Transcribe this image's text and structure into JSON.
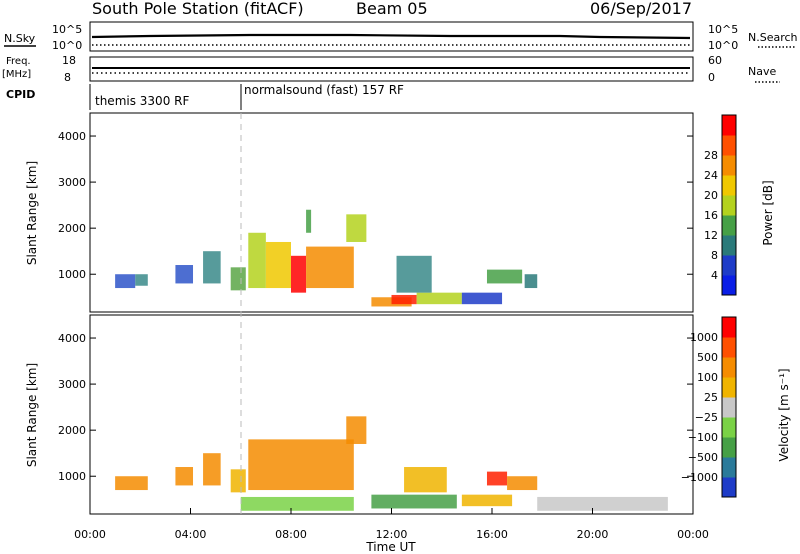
{
  "header": {
    "title": "South Pole Station (fitACF)",
    "beam": "Beam 05",
    "date": "06/Sep/2017"
  },
  "panels": {
    "nsky": {
      "left_label": "N.Sky",
      "right_label": "N.Search",
      "ticks_left": [
        "10^5",
        "10^0"
      ],
      "ticks_right": [
        "10^5",
        "10^0"
      ]
    },
    "freq": {
      "left_label_1": "Freq.",
      "left_label_2": "[MHz]",
      "right_label": "Nave",
      "ticks_left": [
        "18",
        "8"
      ],
      "ticks_right": [
        "60",
        "0"
      ]
    },
    "cpid": {
      "label": "CPID",
      "segments": [
        "themis 3300 RF",
        "normalsound (fast) 157 RF"
      ]
    }
  },
  "chart_data": [
    {
      "type": "heatmap",
      "name": "power",
      "ylabel": "Slant Range [km]",
      "y_ticks": [
        "1000",
        "2000",
        "3000",
        "4000"
      ],
      "x_range_hours": [
        0,
        24
      ],
      "y_range_km": [
        180,
        4500
      ],
      "colorbar": {
        "label": "Power [dB]",
        "ticks": [
          "4",
          "8",
          "12",
          "16",
          "20",
          "24",
          "28"
        ],
        "colors": [
          "#0a1ee6",
          "#1e3cc8",
          "#2a7a7a",
          "#46a046",
          "#b4d21e",
          "#f0c800",
          "#f58c00",
          "#ff5000",
          "#ff0000"
        ]
      },
      "patches": [
        {
          "t": [
            1.0,
            1.8
          ],
          "r": [
            700,
            1000
          ],
          "color": "#2e55c9"
        },
        {
          "t": [
            1.8,
            2.3
          ],
          "r": [
            750,
            1000
          ],
          "color": "#3a8a8a"
        },
        {
          "t": [
            3.4,
            4.1
          ],
          "r": [
            800,
            1200
          ],
          "color": "#2e55c9"
        },
        {
          "t": [
            4.5,
            5.2
          ],
          "r": [
            800,
            1500
          ],
          "color": "#3a8a8a"
        },
        {
          "t": [
            5.6,
            6.2
          ],
          "r": [
            650,
            1150
          ],
          "color": "#5aa646"
        },
        {
          "t": [
            6.3,
            7.0
          ],
          "r": [
            700,
            1900
          ],
          "color": "#b4d21e"
        },
        {
          "t": [
            7.0,
            8.0
          ],
          "r": [
            700,
            1700
          ],
          "color": "#f0c800"
        },
        {
          "t": [
            8.0,
            8.6
          ],
          "r": [
            600,
            1400
          ],
          "color": "#ff0000"
        },
        {
          "t": [
            8.6,
            10.5
          ],
          "r": [
            700,
            1600
          ],
          "color": "#f58c00"
        },
        {
          "t": [
            8.6,
            8.8
          ],
          "r": [
            1900,
            2400
          ],
          "color": "#46a046"
        },
        {
          "t": [
            10.2,
            11.0
          ],
          "r": [
            1700,
            2300
          ],
          "color": "#b4d21e"
        },
        {
          "t": [
            11.2,
            12.8
          ],
          "r": [
            300,
            500
          ],
          "color": "#f58c00"
        },
        {
          "t": [
            12.0,
            13.0
          ],
          "r": [
            350,
            550
          ],
          "color": "#ff2000"
        },
        {
          "t": [
            13.0,
            14.8
          ],
          "r": [
            350,
            600
          ],
          "color": "#b4d21e"
        },
        {
          "t": [
            14.8,
            16.4
          ],
          "r": [
            350,
            600
          ],
          "color": "#1e3cc8"
        },
        {
          "t": [
            15.8,
            17.2
          ],
          "r": [
            800,
            1100
          ],
          "color": "#46a046"
        },
        {
          "t": [
            17.3,
            17.8
          ],
          "r": [
            700,
            1000
          ],
          "color": "#2a7a7a"
        },
        {
          "t": [
            12.2,
            13.6
          ],
          "r": [
            600,
            1400
          ],
          "color": "#3a8a8a"
        }
      ]
    },
    {
      "type": "heatmap",
      "name": "velocity",
      "ylabel": "Slant Range [km]",
      "y_ticks": [
        "1000",
        "2000",
        "3000",
        "4000"
      ],
      "x_ticks": [
        "00:00",
        "04:00",
        "08:00",
        "12:00",
        "16:00",
        "20:00",
        "00:00"
      ],
      "xlabel": "Time UT",
      "x_range_hours": [
        0,
        24
      ],
      "y_range_km": [
        180,
        4500
      ],
      "colorbar": {
        "label": "Velocity [m s⁻¹]",
        "ticks": [
          "1000",
          "500",
          "100",
          "25",
          "−25",
          "−100",
          "−500",
          "−1000"
        ],
        "colors": [
          "#1e3cc8",
          "#2a7a9a",
          "#46a046",
          "#7ad246",
          "#c8c8c8",
          "#f0b400",
          "#f58c00",
          "#ff5000",
          "#ff0000"
        ]
      },
      "patches": [
        {
          "t": [
            1.0,
            2.3
          ],
          "r": [
            700,
            1000
          ],
          "color": "#f58c00"
        },
        {
          "t": [
            3.4,
            4.1
          ],
          "r": [
            800,
            1200
          ],
          "color": "#f58c00"
        },
        {
          "t": [
            4.5,
            5.2
          ],
          "r": [
            800,
            1500
          ],
          "color": "#f58c00"
        },
        {
          "t": [
            5.6,
            6.2
          ],
          "r": [
            650,
            1150
          ],
          "color": "#f0b400"
        },
        {
          "t": [
            6.3,
            10.5
          ],
          "r": [
            700,
            1800
          ],
          "color": "#f58c00"
        },
        {
          "t": [
            6.0,
            10.5
          ],
          "r": [
            250,
            550
          ],
          "color": "#7ad246"
        },
        {
          "t": [
            10.2,
            11.0
          ],
          "r": [
            1700,
            2300
          ],
          "color": "#f58c00"
        },
        {
          "t": [
            11.2,
            14.6
          ],
          "r": [
            300,
            600
          ],
          "color": "#46a046"
        },
        {
          "t": [
            12.5,
            14.2
          ],
          "r": [
            650,
            1200
          ],
          "color": "#f0b400"
        },
        {
          "t": [
            14.8,
            16.8
          ],
          "r": [
            350,
            600
          ],
          "color": "#f0b400"
        },
        {
          "t": [
            15.8,
            16.6
          ],
          "r": [
            800,
            1100
          ],
          "color": "#ff2000"
        },
        {
          "t": [
            16.6,
            17.8
          ],
          "r": [
            700,
            1000
          ],
          "color": "#f58c00"
        },
        {
          "t": [
            17.8,
            23.0
          ],
          "r": [
            250,
            550
          ],
          "color": "#c8c8c8"
        }
      ]
    }
  ]
}
